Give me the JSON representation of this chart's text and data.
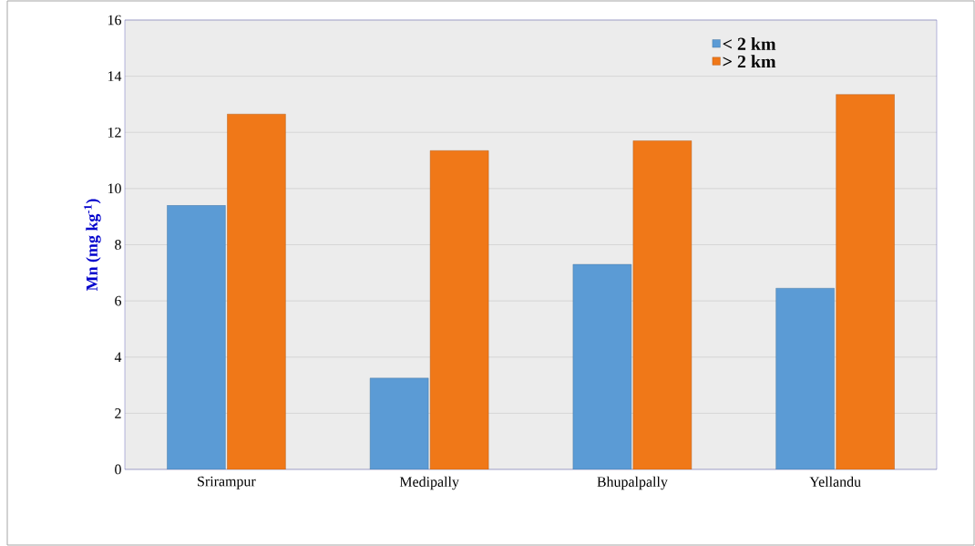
{
  "chart_data": {
    "type": "bar",
    "ylabel": "Mn (mg kg$^{-1}$)",
    "categories": [
      "Srirampur",
      "Medipally",
      "Bhupalpally",
      "Yellandu"
    ],
    "series": [
      {
        "name": "< 2 km",
        "color": "#5b9bd5",
        "values": [
          9.4,
          3.25,
          7.3,
          6.45
        ]
      },
      {
        "name": "> 2 km",
        "color": "#f07818",
        "values": [
          12.65,
          11.35,
          11.7,
          13.35
        ]
      }
    ],
    "ylim": [
      0,
      16
    ],
    "yticks": [
      0,
      2,
      4,
      6,
      8,
      10,
      12,
      14,
      16
    ],
    "grid": "y",
    "legend": "top right"
  }
}
